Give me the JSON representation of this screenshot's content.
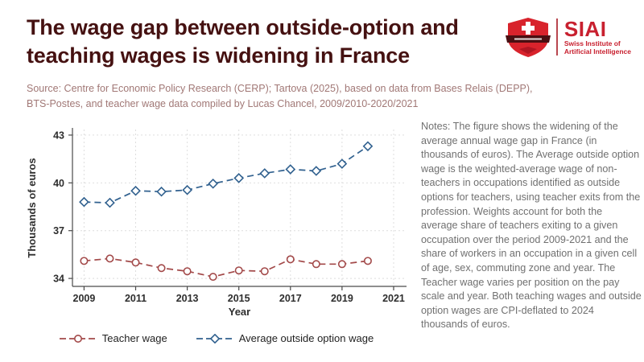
{
  "header": {
    "title": "The wage gap between outside-option and teaching wages is widening in France"
  },
  "logo": {
    "name": "SIAI",
    "subtitle_line1": "Swiss Institute of",
    "subtitle_line2": "Artificial Intelligence",
    "brand_red": "#c8202f",
    "shield_red": "#d8232c",
    "banner_dark": "#4a0f12"
  },
  "source": {
    "lines": [
      "Source: Centre for Economic Policy Research (CERP); Tartova (2025), based on data from Bases Relais (DEPP),",
      "BTS-Postes, and teacher wage data compiled by Lucas Chancel, 2009/2010-2020/2021"
    ]
  },
  "notes": {
    "text": "Notes: The figure shows the widening of the average annual wage gap in France (in thousands of euros). The Average outside option wage is the weighted-average wage of non-teachers in occupations identified as outside options for teachers, using teacher exits from the profession. Weights account for both the average share of teachers exiting to a given occupation over the period 2009-2021 and the share of workers in an occupation in a given cell of age, sex, commuting zone and year. The Teacher wage varies per position on the pay scale and year. Both teaching wages and outside option wages are CPI-deflated to 2024 thousands of euros."
  },
  "chart_data": {
    "type": "line",
    "x": [
      2009,
      2010,
      2011,
      2012,
      2013,
      2014,
      2015,
      2016,
      2017,
      2018,
      2019,
      2020
    ],
    "series": [
      {
        "name": "Teacher wage",
        "marker": "circle",
        "color": "#a34a4a",
        "values": [
          35.1,
          35.25,
          35.0,
          34.65,
          34.45,
          34.1,
          34.5,
          34.45,
          35.2,
          34.9,
          34.9,
          35.1
        ]
      },
      {
        "name": "Average outside option wage",
        "marker": "diamond",
        "color": "#31618f",
        "values": [
          38.8,
          38.75,
          39.5,
          39.45,
          39.55,
          39.95,
          40.3,
          40.6,
          40.85,
          40.75,
          41.2,
          42.3
        ]
      }
    ],
    "xlabel": "Year",
    "ylabel": "Thousands of euros",
    "xticks": [
      2009,
      2011,
      2013,
      2015,
      2017,
      2019,
      2021
    ],
    "yticks": [
      34,
      37,
      40,
      43
    ],
    "xlim": [
      2008.55,
      2021.5
    ],
    "ylim": [
      33.5,
      43.35
    ],
    "grid": true,
    "grid_color": "#dedede",
    "axis_color": "#4a4a4a",
    "legend_position": "bottom"
  }
}
